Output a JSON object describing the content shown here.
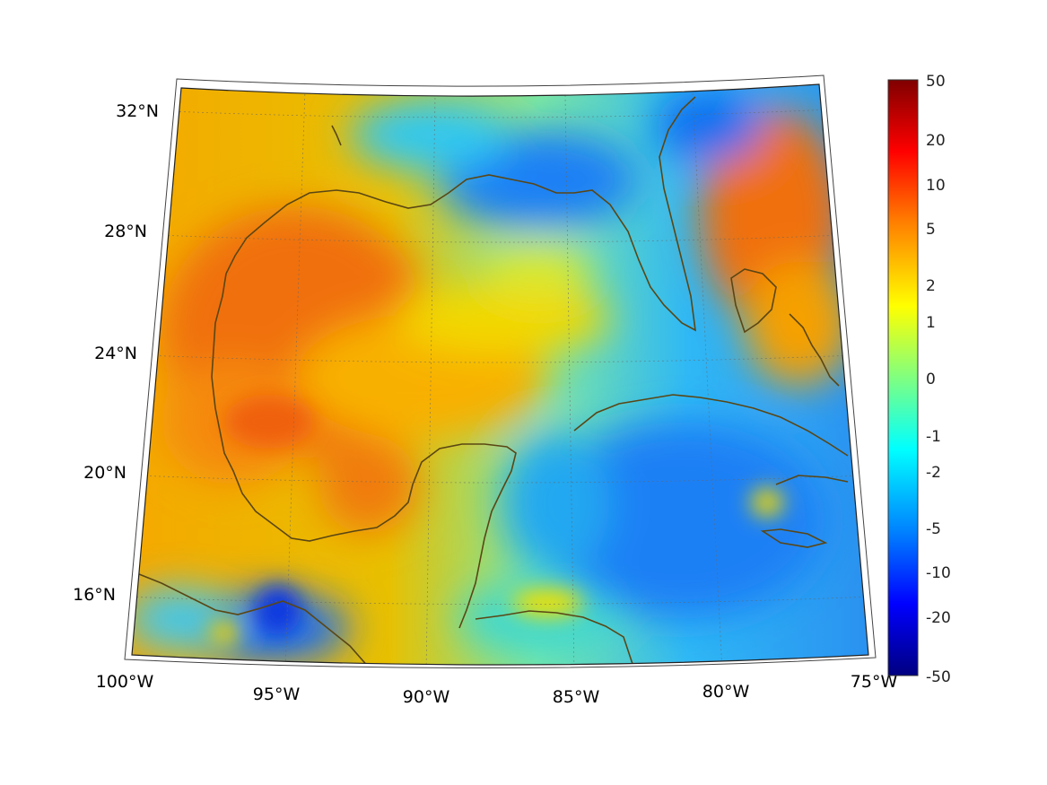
{
  "map": {
    "projection": "conic",
    "extent": {
      "lon": [
        "100°W",
        "75°W"
      ],
      "lat": [
        "14°N",
        "33°N"
      ]
    },
    "lat_labels": [
      "32°N",
      "28°N",
      "24°N",
      "20°N",
      "16°N"
    ],
    "lon_labels": [
      "100°W",
      "95°W",
      "90°W",
      "85°W",
      "80°W",
      "75°W"
    ],
    "gridlines": "dotted",
    "coastline_color": "#5a4614",
    "field": "diverging anomaly, jet colormap",
    "regions_warm": [
      "western Gulf of Mexico",
      "Yucatan Peninsula",
      "Atlantic east of Florida"
    ],
    "regions_cold": [
      "Florida panhandle coast",
      "Caribbean Sea",
      "Gulf of Tehuantepec"
    ]
  },
  "colorbar": {
    "colormap": "jet",
    "tick_labels": [
      "50",
      "20",
      "10",
      "5",
      "2",
      "1",
      "0",
      "-1",
      "-2",
      "-5",
      "-10",
      "-20",
      "-50"
    ],
    "colors": [
      "#800000",
      "#ff0000",
      "#ff8000",
      "#ffff00",
      "#80ff80",
      "#00ffff",
      "#0080ff",
      "#0000ff",
      "#000080"
    ]
  }
}
